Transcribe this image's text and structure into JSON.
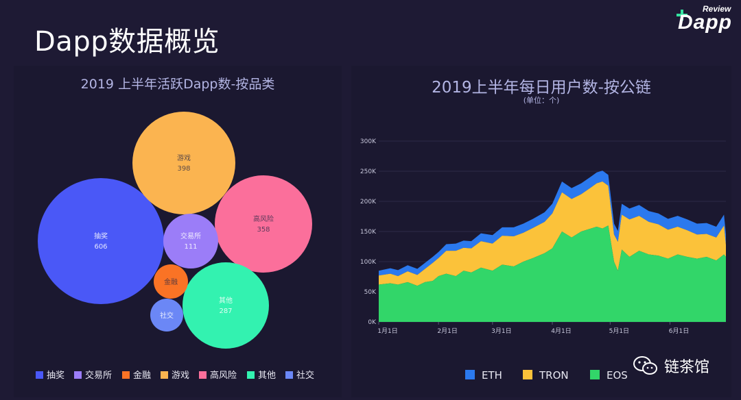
{
  "page": {
    "title": "Dapp数据概览"
  },
  "logo": {
    "review": "Review",
    "word": "Dapp"
  },
  "watermark": {
    "text": "链茶馆"
  },
  "chart_data": [
    {
      "type": "bubble",
      "title": "2019 上半年活跃Dapp数-按品类",
      "bubbles": [
        {
          "name": "抽奖",
          "value": 606,
          "color": "#4a58f7"
        },
        {
          "name": "游戏",
          "value": 398,
          "color": "#fbb450"
        },
        {
          "name": "高风险",
          "value": 358,
          "color": "#fb6f9b"
        },
        {
          "name": "交易所",
          "value": 111,
          "color": "#9b7df8"
        },
        {
          "name": "其他",
          "value": 287,
          "color": "#33f2b0"
        },
        {
          "name": "金融",
          "value": null,
          "color": "#fa7325"
        },
        {
          "name": "社交",
          "value": null,
          "color": "#6b87f6"
        }
      ],
      "legend": {
        "placement": "bottom",
        "items": [
          {
            "name": "抽奖",
            "color": "#4a58f7"
          },
          {
            "name": "交易所",
            "color": "#9b7df8"
          },
          {
            "name": "金融",
            "color": "#fa7325"
          },
          {
            "name": "游戏",
            "color": "#fbb450"
          },
          {
            "name": "高风险",
            "color": "#fb6f9b"
          },
          {
            "name": "其他",
            "color": "#33f2b0"
          },
          {
            "name": "社交",
            "color": "#6b87f6"
          }
        ]
      }
    },
    {
      "type": "area",
      "stacked": true,
      "title": "2019上半年每日用户数-按公链",
      "subtitle": "(单位：个)",
      "x_ticks": [
        "1月1日",
        "2月1日",
        "3月1日",
        "4月1日",
        "5月1日",
        "6月1日"
      ],
      "x_tick_days": [
        0,
        31,
        59,
        90,
        120,
        151
      ],
      "x_range": [
        0,
        180
      ],
      "y_ticks": [
        "0K",
        "50K",
        "100K",
        "150K",
        "200K",
        "250K",
        "300K"
      ],
      "ylim": [
        0,
        300
      ],
      "y_unit": "K",
      "grid": true,
      "legend": {
        "placement": "bottom"
      },
      "series": [
        {
          "name": "EOS",
          "color": "#32d669",
          "x": [
            0,
            6,
            10,
            15,
            20,
            24,
            28,
            31,
            35,
            40,
            44,
            48,
            53,
            59,
            64,
            70,
            75,
            80,
            86,
            90,
            95,
            100,
            105,
            110,
            113,
            116,
            119,
            122,
            124,
            126,
            130,
            135,
            140,
            145,
            150,
            155,
            160,
            165,
            170,
            175,
            179,
            180
          ],
          "y": [
            62,
            64,
            62,
            66,
            60,
            66,
            68,
            76,
            80,
            76,
            85,
            82,
            90,
            85,
            95,
            92,
            100,
            106,
            114,
            122,
            150,
            140,
            150,
            155,
            158,
            155,
            160,
            100,
            85,
            120,
            108,
            118,
            112,
            110,
            105,
            112,
            108,
            105,
            108,
            102,
            112,
            108
          ]
        },
        {
          "name": "TRON",
          "color": "#fbc23a",
          "x": [
            0,
            6,
            10,
            15,
            20,
            24,
            28,
            31,
            35,
            40,
            44,
            48,
            53,
            59,
            64,
            70,
            75,
            80,
            86,
            90,
            95,
            100,
            105,
            110,
            113,
            116,
            119,
            122,
            124,
            126,
            130,
            135,
            140,
            145,
            150,
            155,
            160,
            165,
            170,
            175,
            179,
            180
          ],
          "y": [
            15,
            16,
            14,
            18,
            18,
            22,
            30,
            30,
            38,
            42,
            38,
            40,
            44,
            45,
            48,
            50,
            48,
            50,
            52,
            58,
            65,
            64,
            62,
            68,
            72,
            78,
            66,
            45,
            48,
            58,
            62,
            58,
            54,
            52,
            48,
            46,
            44,
            40,
            38,
            38,
            48,
            20
          ]
        },
        {
          "name": "ETH",
          "color": "#2b79ee",
          "x": [
            0,
            6,
            10,
            15,
            20,
            24,
            28,
            31,
            35,
            40,
            44,
            48,
            53,
            59,
            64,
            70,
            75,
            80,
            86,
            90,
            95,
            100,
            105,
            110,
            113,
            116,
            119,
            122,
            124,
            126,
            130,
            135,
            140,
            145,
            150,
            155,
            160,
            165,
            170,
            175,
            179,
            180
          ],
          "y": [
            8,
            9,
            10,
            10,
            10,
            10,
            10,
            10,
            11,
            12,
            12,
            12,
            13,
            14,
            14,
            15,
            15,
            15,
            16,
            16,
            18,
            18,
            18,
            18,
            18,
            18,
            18,
            18,
            18,
            18,
            18,
            18,
            18,
            18,
            18,
            18,
            18,
            18,
            18,
            18,
            18,
            18
          ]
        }
      ]
    }
  ]
}
